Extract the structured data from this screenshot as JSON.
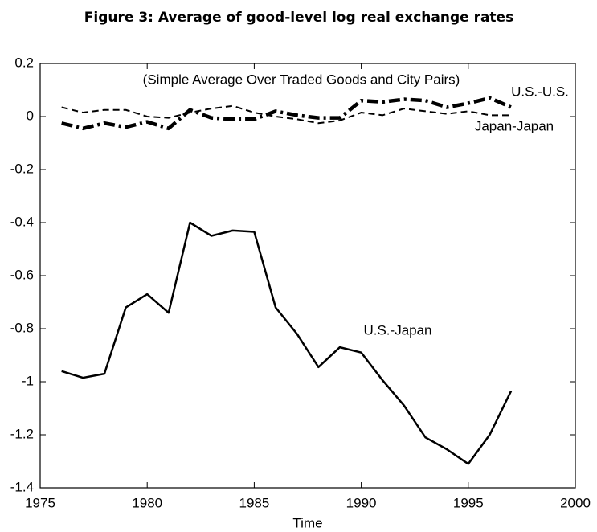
{
  "chart_data": {
    "type": "line",
    "title": "Figure 3: Average of good-level log real exchange rates",
    "annotation": "(Simple Average Over Traded Goods and City Pairs)",
    "x_label": "Time",
    "x": [
      1976,
      1977,
      1978,
      1979,
      1980,
      1981,
      1982,
      1983,
      1984,
      1985,
      1986,
      1987,
      1988,
      1989,
      1990,
      1991,
      1992,
      1993,
      1994,
      1995,
      1996,
      1997
    ],
    "series": [
      {
        "name": "U.S.-U.S.",
        "color": "#000000",
        "style": "dash-dot",
        "values": [
          -0.025,
          -0.045,
          -0.025,
          -0.04,
          -0.02,
          -0.045,
          0.025,
          -0.005,
          -0.01,
          -0.01,
          0.02,
          0.005,
          -0.005,
          -0.005,
          0.06,
          0.055,
          0.065,
          0.06,
          0.035,
          0.05,
          0.07,
          0.035
        ]
      },
      {
        "name": "Japan-Japan",
        "color": "#000000",
        "style": "dashed",
        "values": [
          0.035,
          0.015,
          0.025,
          0.025,
          0.0,
          -0.005,
          0.015,
          0.03,
          0.04,
          0.015,
          0.0,
          -0.01,
          -0.025,
          -0.015,
          0.015,
          0.005,
          0.03,
          0.02,
          0.01,
          0.02,
          0.005,
          0.005
        ]
      },
      {
        "name": "U.S.-Japan",
        "color": "#000000",
        "style": "solid",
        "values": [
          -0.96,
          -0.985,
          -0.97,
          -0.72,
          -0.67,
          -0.74,
          -0.4,
          -0.45,
          -0.43,
          -0.435,
          -0.72,
          -0.82,
          -0.945,
          -0.87,
          -0.89,
          -0.995,
          -1.09,
          -1.21,
          -1.255,
          -1.31,
          -1.2,
          -1.035
        ]
      }
    ],
    "xlim": [
      1975,
      2000
    ],
    "xticks": [
      1975,
      1980,
      1985,
      1990,
      1995,
      2000
    ],
    "ylim": [
      -1.4,
      0.2
    ],
    "yticks": [
      0.2,
      0,
      -0.2,
      -0.4,
      -0.6,
      -0.8,
      -1,
      -1.2,
      -1.4
    ],
    "grid": false
  }
}
